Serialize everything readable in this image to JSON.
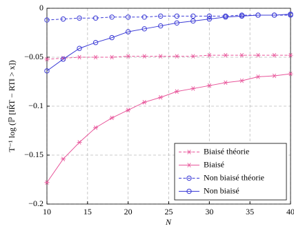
{
  "chart_data": {
    "type": "line",
    "x_label": "N",
    "y_label": "T⁻¹ log (ℙ [‖R̂T − RT‖ > x])",
    "x": [
      10,
      12,
      14,
      16,
      18,
      20,
      22,
      24,
      26,
      28,
      30,
      32,
      34,
      36,
      38,
      40
    ],
    "series": [
      {
        "name": "Biaisé théorie",
        "color": "#e8559a",
        "marker": "star",
        "dashed": true,
        "values": [
          -0.052,
          -0.051,
          -0.05,
          -0.05,
          -0.05,
          -0.049,
          -0.049,
          -0.049,
          -0.049,
          -0.049,
          -0.048,
          -0.048,
          -0.048,
          -0.048,
          -0.048,
          -0.048
        ]
      },
      {
        "name": "Biaisé",
        "color": "#e8559a",
        "marker": "star",
        "dashed": false,
        "values": [
          -0.178,
          -0.154,
          -0.137,
          -0.122,
          -0.112,
          -0.104,
          -0.096,
          -0.091,
          -0.085,
          -0.082,
          -0.079,
          -0.076,
          -0.074,
          -0.07,
          -0.069,
          -0.067
        ]
      },
      {
        "name": "Non biaisé théorie",
        "color": "#3a3ad6",
        "marker": "circle",
        "dashed": true,
        "values": [
          -0.012,
          -0.011,
          -0.01,
          -0.01,
          -0.009,
          -0.009,
          -0.009,
          -0.008,
          -0.008,
          -0.008,
          -0.008,
          -0.008,
          -0.007,
          -0.007,
          -0.007,
          -0.007
        ]
      },
      {
        "name": "Non biaisé",
        "color": "#3a3ad6",
        "marker": "circle",
        "dashed": false,
        "values": [
          -0.064,
          -0.052,
          -0.041,
          -0.035,
          -0.03,
          -0.024,
          -0.021,
          -0.018,
          -0.015,
          -0.013,
          -0.011,
          -0.009,
          -0.008,
          -0.007,
          -0.007,
          -0.006
        ]
      }
    ],
    "xlim": [
      10,
      40
    ],
    "xticks": [
      10,
      15,
      20,
      25,
      30,
      35,
      40
    ],
    "ylim": [
      -0.2,
      0
    ],
    "yticks": [
      {
        "value": -0.2,
        "label": "−0.2"
      },
      {
        "value": -0.15,
        "label": "−0.15"
      },
      {
        "value": -0.1,
        "label": "−0.1"
      },
      {
        "value": -0.05,
        "label": "−0.05"
      },
      0
    ],
    "grid": true,
    "legend": "lower right"
  }
}
